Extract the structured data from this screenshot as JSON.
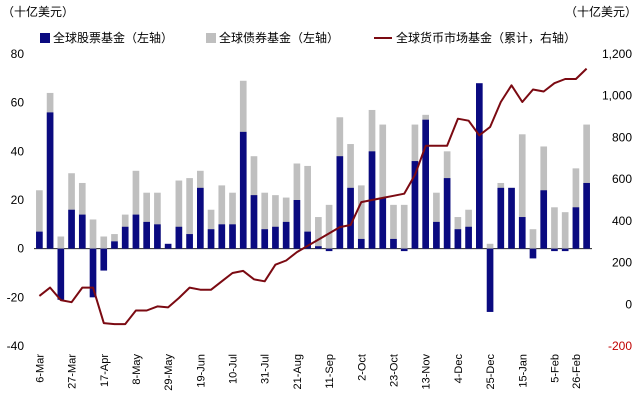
{
  "chart_data": {
    "type": "bar+line",
    "unit_left": "（十亿美元）",
    "unit_right": "（十亿美元）",
    "legend": [
      {
        "label": "全球股票基金（左轴）",
        "color": "#0a0a80",
        "kind": "bar"
      },
      {
        "label": "全球债券基金（左轴）",
        "color": "#bfbfbf",
        "kind": "bar"
      },
      {
        "label": "全球货币市场基金（累计，右轴）",
        "color": "#7b0a12",
        "kind": "line"
      }
    ],
    "y_left": {
      "min": -40,
      "max": 80,
      "ticks": [
        "-40",
        "-20",
        "0",
        "20",
        "40",
        "60",
        "80"
      ]
    },
    "y_right": {
      "min": -200,
      "max": 1200,
      "ticks": [
        "-200",
        "0",
        "200",
        "400",
        "600",
        "800",
        "1,000",
        "1,200"
      ]
    },
    "x_tick_labels": [
      {
        "index": 0,
        "label": "6-Mar"
      },
      {
        "index": 3,
        "label": "27-Mar"
      },
      {
        "index": 6,
        "label": "17-Apr"
      },
      {
        "index": 9,
        "label": "8-May"
      },
      {
        "index": 12,
        "label": "29-May"
      },
      {
        "index": 15,
        "label": "19-Jun"
      },
      {
        "index": 18,
        "label": "10-Jul"
      },
      {
        "index": 21,
        "label": "31-Jul"
      },
      {
        "index": 24,
        "label": "21-Aug"
      },
      {
        "index": 27,
        "label": "11-Sep"
      },
      {
        "index": 30,
        "label": "2-Oct"
      },
      {
        "index": 33,
        "label": "23-Oct"
      },
      {
        "index": 36,
        "label": "13-Nov"
      },
      {
        "index": 39,
        "label": "4-Dec"
      },
      {
        "index": 42,
        "label": "25-Dec"
      },
      {
        "index": 45,
        "label": "15-Jan"
      },
      {
        "index": 48,
        "label": "5-Feb"
      },
      {
        "index": 50,
        "label": "26-Feb"
      }
    ],
    "equity_fund": [
      7,
      56,
      -21,
      16,
      14,
      -20,
      -9,
      3,
      9,
      14,
      11,
      10,
      2,
      9,
      6,
      25,
      8,
      10,
      10,
      48,
      22,
      8,
      9,
      11,
      20,
      7,
      1,
      -1,
      38,
      25,
      4,
      40,
      21,
      4,
      -1,
      36,
      53,
      11,
      29,
      8,
      9,
      68,
      -26,
      25,
      25,
      13,
      -4,
      24,
      -1,
      -1,
      17,
      27
    ],
    "bond_fund": [
      24,
      64,
      5,
      31,
      27,
      12,
      5,
      6,
      14,
      32,
      23,
      23,
      1,
      28,
      29,
      32,
      16,
      26,
      23,
      69,
      38,
      23,
      22,
      21,
      35,
      34,
      13,
      18,
      54,
      43,
      26,
      57,
      51,
      18,
      18,
      51,
      55,
      23,
      40,
      13,
      16,
      37,
      2,
      27,
      25,
      47,
      8,
      42,
      17,
      15,
      33,
      51
    ],
    "money_market_cum": [
      40,
      80,
      20,
      10,
      80,
      80,
      -90,
      -95,
      -95,
      -30,
      -30,
      -10,
      -15,
      30,
      80,
      70,
      70,
      110,
      150,
      160,
      120,
      110,
      190,
      210,
      250,
      280,
      310,
      340,
      370,
      380,
      490,
      500,
      510,
      520,
      530,
      620,
      760,
      760,
      760,
      890,
      880,
      810,
      850,
      970,
      1050,
      970,
      1030,
      1020,
      1060,
      1080,
      1080,
      1130
    ]
  }
}
